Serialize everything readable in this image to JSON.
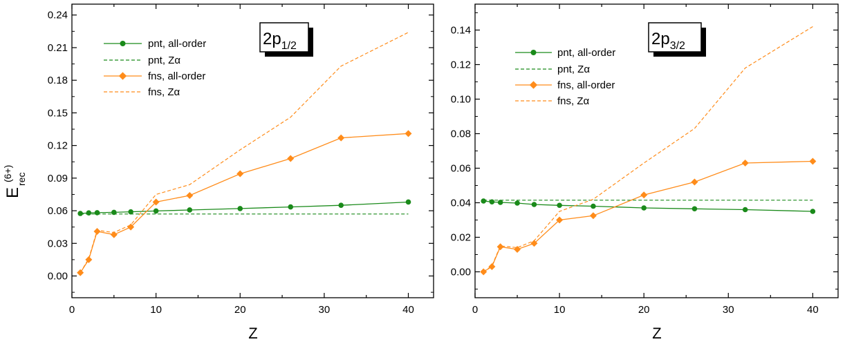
{
  "ylabel_main": "E",
  "ylabel_sub": "rec",
  "ylabel_sup": "(6+)",
  "colors": {
    "green": "#1a8a1a",
    "orange": "#ff8c1a",
    "axis": "#000000"
  },
  "chart_data": [
    {
      "type": "line",
      "title": "",
      "xlabel": "Z",
      "ylabel": "E_rec^(6+)",
      "xlim": [
        0,
        43
      ],
      "ylim": [
        -0.02,
        0.25
      ],
      "xticks": [
        0,
        10,
        20,
        30,
        40
      ],
      "yticks": [
        0.0,
        0.03,
        0.06,
        0.09,
        0.12,
        0.15,
        0.18,
        0.21,
        0.24
      ],
      "ytick_labels": [
        "0.00",
        "0.03",
        "0.06",
        "0.09",
        "0.12",
        "0.15",
        "0.18",
        "0.21",
        "0.24"
      ],
      "label_box": {
        "main": "2p",
        "sub": "1/2"
      },
      "legend_position": "top-left",
      "series": [
        {
          "name": "pnt, all-order",
          "style": "solid-marker-circle",
          "color": "#1a8a1a",
          "x": [
            1,
            2,
            3,
            5,
            7,
            10,
            14,
            20,
            26,
            32,
            40
          ],
          "y": [
            0.0575,
            0.058,
            0.0582,
            0.0585,
            0.059,
            0.0598,
            0.0607,
            0.062,
            0.0635,
            0.065,
            0.068
          ]
        },
        {
          "name": "pnt, Zα",
          "style": "dashed",
          "color": "#1a8a1a",
          "x": [
            1,
            40
          ],
          "y": [
            0.057,
            0.057
          ]
        },
        {
          "name": "fns, all-order",
          "style": "solid-marker-diamond",
          "color": "#ff8c1a",
          "x": [
            1,
            2,
            3,
            5,
            7,
            10,
            14,
            20,
            26,
            32,
            40
          ],
          "y": [
            0.003,
            0.015,
            0.041,
            0.038,
            0.045,
            0.068,
            0.074,
            0.094,
            0.108,
            0.127,
            0.131
          ]
        },
        {
          "name": "fns, Zα",
          "style": "dashed",
          "color": "#ff8c1a",
          "x": [
            1,
            2,
            3,
            5,
            7,
            10,
            14,
            20,
            26,
            32,
            40
          ],
          "y": [
            0.003,
            0.016,
            0.042,
            0.04,
            0.047,
            0.075,
            0.084,
            0.116,
            0.146,
            0.193,
            0.224
          ]
        }
      ]
    },
    {
      "type": "line",
      "title": "",
      "xlabel": "Z",
      "ylabel": "",
      "xlim": [
        0,
        43
      ],
      "ylim": [
        -0.015,
        0.155
      ],
      "xticks": [
        0,
        10,
        20,
        30,
        40
      ],
      "yticks": [
        0.0,
        0.02,
        0.04,
        0.06,
        0.08,
        0.1,
        0.12,
        0.14
      ],
      "ytick_labels": [
        "0.00",
        "0.02",
        "0.04",
        "0.06",
        "0.08",
        "0.10",
        "0.12",
        "0.14"
      ],
      "label_box": {
        "main": "2p",
        "sub": "3/2"
      },
      "legend_position": "top-left",
      "series": [
        {
          "name": "pnt, all-order",
          "style": "solid-marker-circle",
          "color": "#1a8a1a",
          "x": [
            1,
            2,
            3,
            5,
            7,
            10,
            14,
            20,
            26,
            32,
            40
          ],
          "y": [
            0.041,
            0.0405,
            0.0402,
            0.0398,
            0.039,
            0.0385,
            0.038,
            0.037,
            0.0365,
            0.036,
            0.035
          ]
        },
        {
          "name": "pnt, Zα",
          "style": "dashed",
          "color": "#1a8a1a",
          "x": [
            1,
            40
          ],
          "y": [
            0.0415,
            0.0415
          ]
        },
        {
          "name": "fns, all-order",
          "style": "solid-marker-diamond",
          "color": "#ff8c1a",
          "x": [
            1,
            2,
            3,
            5,
            7,
            10,
            14,
            20,
            26,
            32,
            40
          ],
          "y": [
            0.0,
            0.003,
            0.0145,
            0.013,
            0.0165,
            0.03,
            0.0325,
            0.0445,
            0.052,
            0.063,
            0.064
          ]
        },
        {
          "name": "fns, Zα",
          "style": "dashed",
          "color": "#ff8c1a",
          "x": [
            1,
            2,
            3,
            5,
            7,
            10,
            14,
            20,
            26,
            32,
            40
          ],
          "y": [
            0.0,
            0.0035,
            0.015,
            0.014,
            0.018,
            0.035,
            0.042,
            0.063,
            0.083,
            0.118,
            0.142
          ]
        }
      ]
    }
  ]
}
